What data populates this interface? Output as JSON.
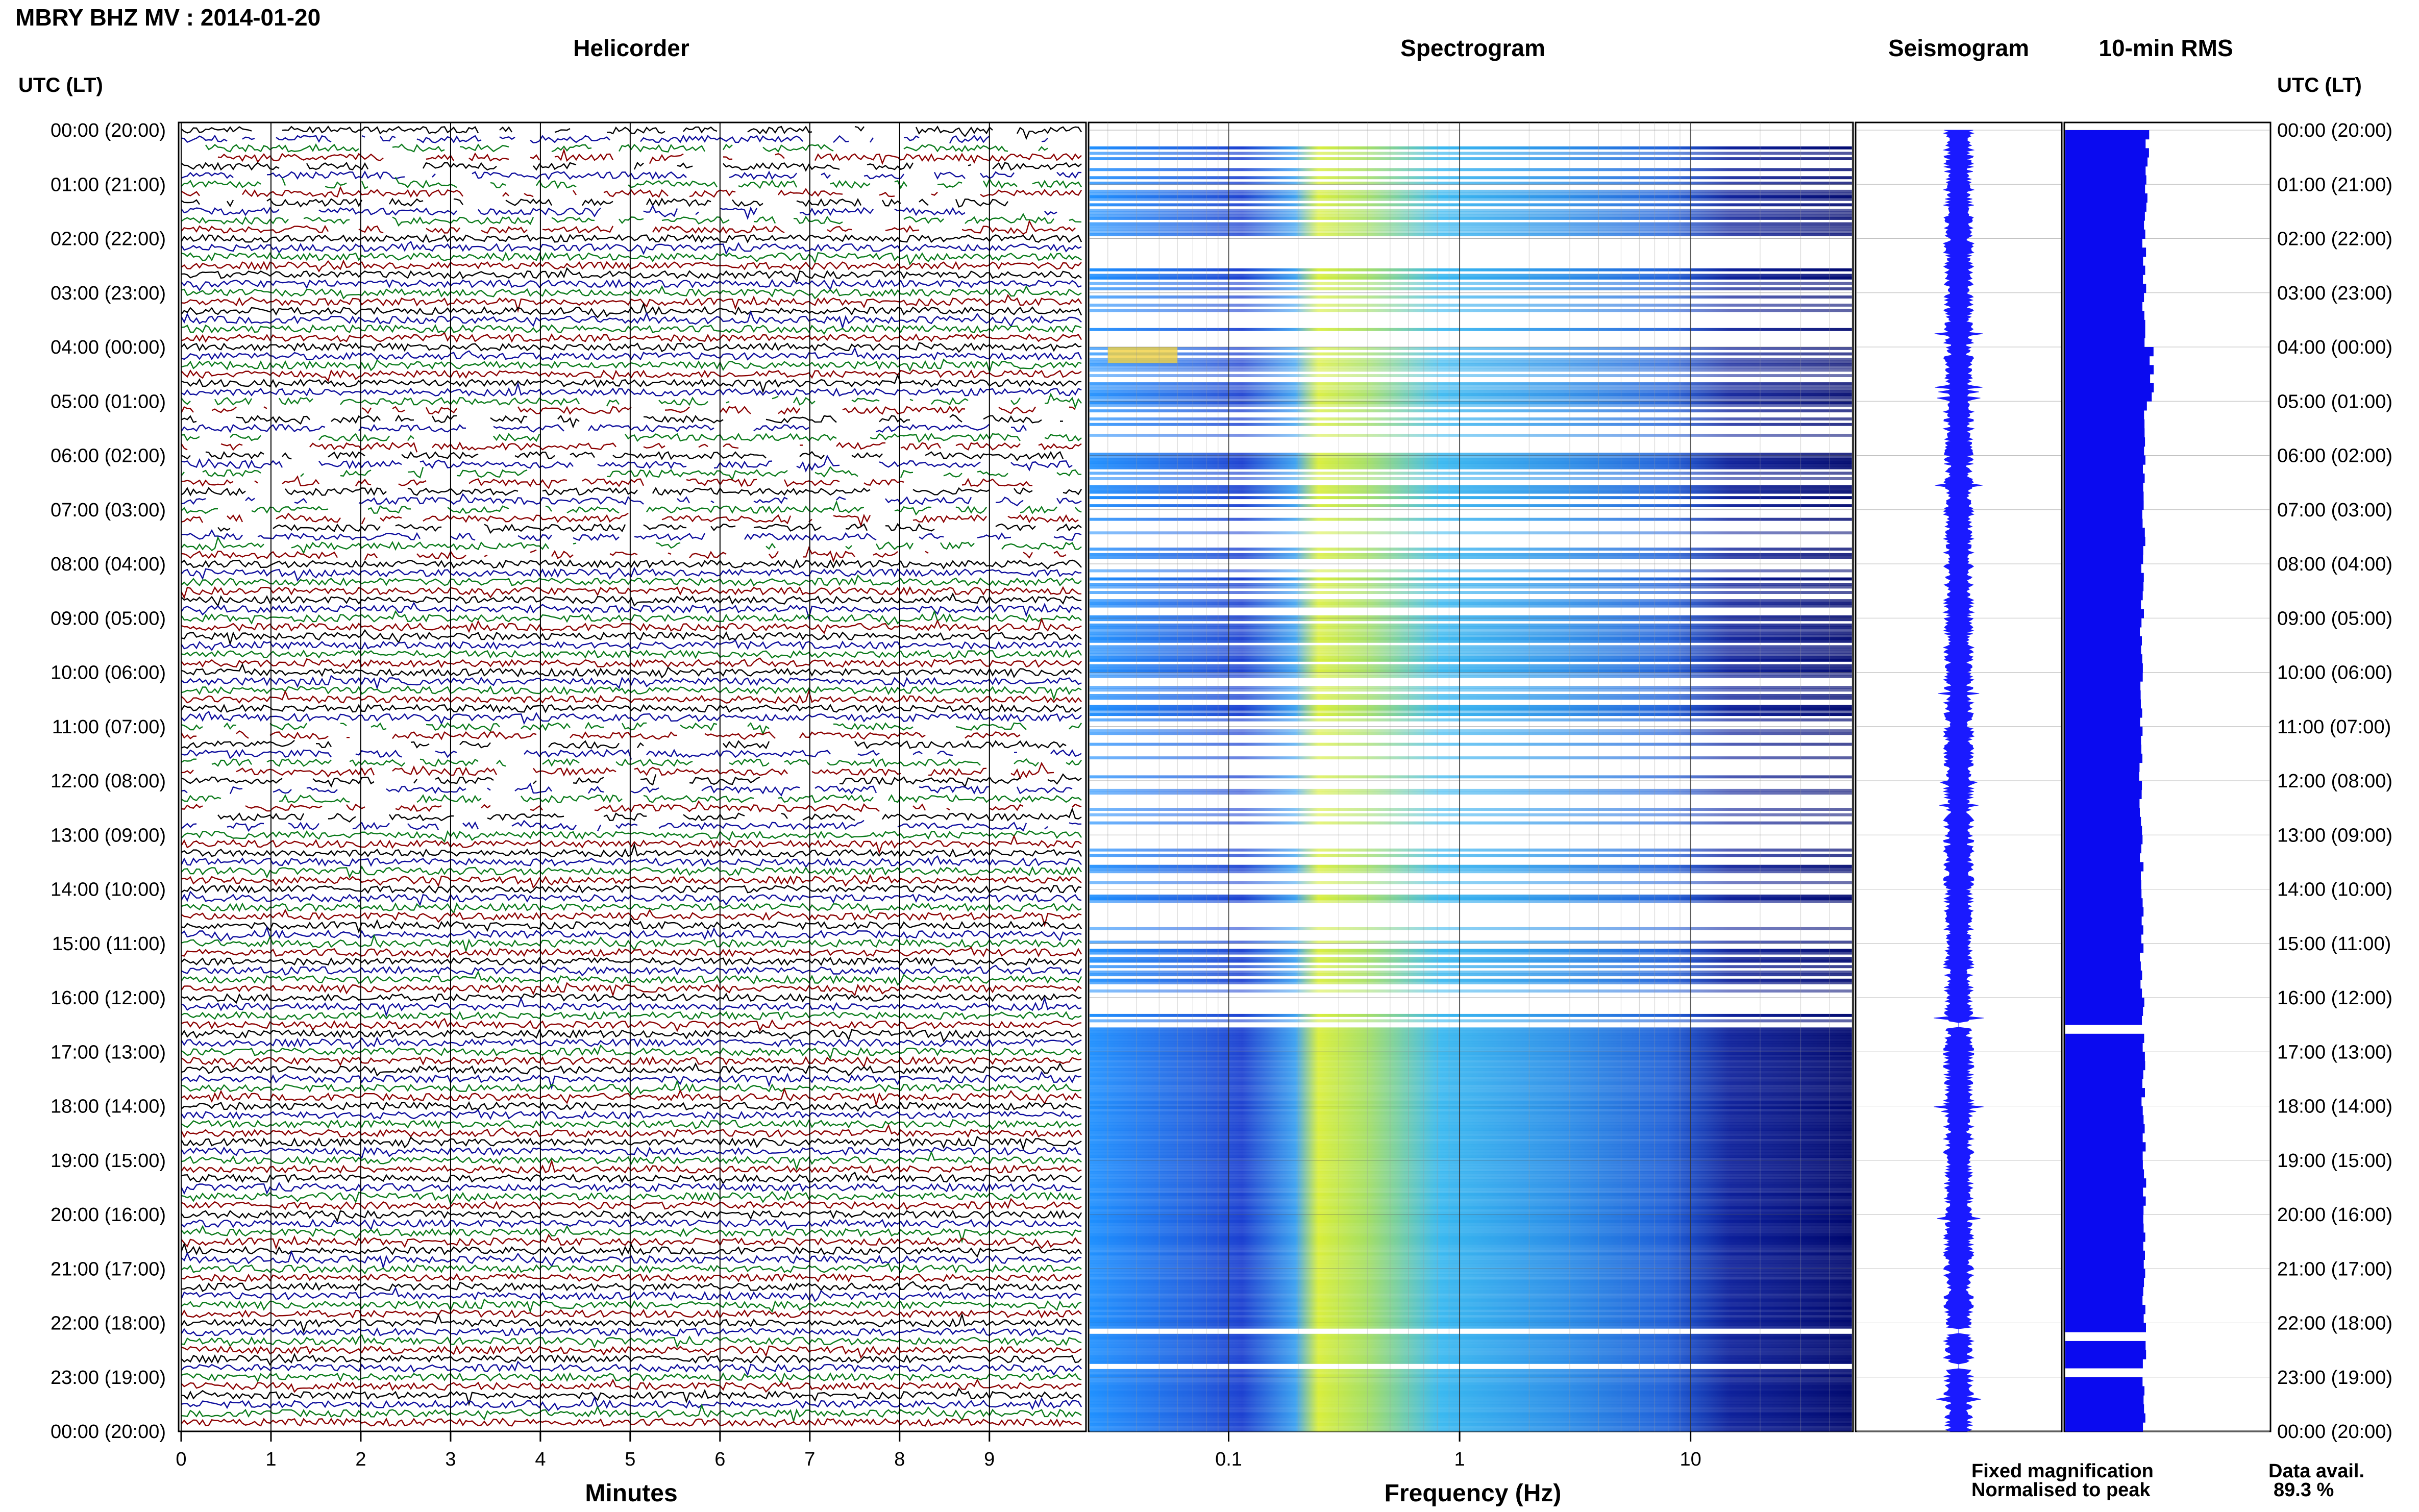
{
  "title": "MBRY BHZ MV : 2014-01-20",
  "panels": {
    "helicorder": "Helicorder",
    "spectrogram": "Spectrogram",
    "seismogram": "Seismogram",
    "rms": "10-min RMS"
  },
  "time_axis_title": "UTC (LT)",
  "time_labels": [
    "00:00 (20:00)",
    "01:00 (21:00)",
    "02:00 (22:00)",
    "03:00 (23:00)",
    "04:00 (00:00)",
    "05:00 (01:00)",
    "06:00 (02:00)",
    "07:00 (03:00)",
    "08:00 (04:00)",
    "09:00 (05:00)",
    "10:00 (06:00)",
    "11:00 (07:00)",
    "12:00 (08:00)",
    "13:00 (09:00)",
    "14:00 (10:00)",
    "15:00 (11:00)",
    "16:00 (12:00)",
    "17:00 (13:00)",
    "18:00 (14:00)",
    "19:00 (15:00)",
    "20:00 (16:00)",
    "21:00 (17:00)",
    "22:00 (18:00)",
    "23:00 (19:00)",
    "00:00 (20:00)"
  ],
  "colors": {
    "trace_cycle": [
      "#000000",
      "#0d0d9c",
      "#0a7a1a",
      "#8b0000"
    ],
    "seismogram": "#1a1aff",
    "rms": "#0a0af0",
    "legend_fixed": "#0000ff",
    "legend_norm": "#ff0000"
  },
  "chart_data": {
    "type": "heatmap",
    "helicorder": {
      "x_ticks": [
        "0",
        "1",
        "2",
        "3",
        "4",
        "5",
        "6",
        "7",
        "8",
        "9"
      ],
      "xlabel": "Minutes",
      "xlim": [
        0,
        10
      ],
      "lines_per_hour": 6
    },
    "spectrogram": {
      "x_ticks": [
        "0.1",
        "1",
        "10"
      ],
      "xlabel": "Frequency (Hz)",
      "xlim": [
        0.025,
        50
      ],
      "log_scale": true
    },
    "data_gaps_utc": [
      [
        16.45,
        16.55
      ],
      [
        22.1,
        22.2
      ],
      [
        22.75,
        22.85
      ]
    ],
    "rms_hourly": [
      1.0,
      0.98,
      0.96,
      0.95,
      1.05,
      0.97,
      0.96,
      0.95,
      0.94,
      0.93,
      0.93,
      0.92,
      0.92,
      0.93,
      0.94,
      0.93,
      0.95,
      0.95,
      0.96,
      0.96,
      0.96,
      0.95,
      0.96,
      0.96
    ]
  },
  "legend": {
    "fixed": "Fixed magnification",
    "normalised": "Normalised to peak"
  },
  "data_availability": {
    "label": "Data avail.",
    "value": "89.3 %"
  }
}
